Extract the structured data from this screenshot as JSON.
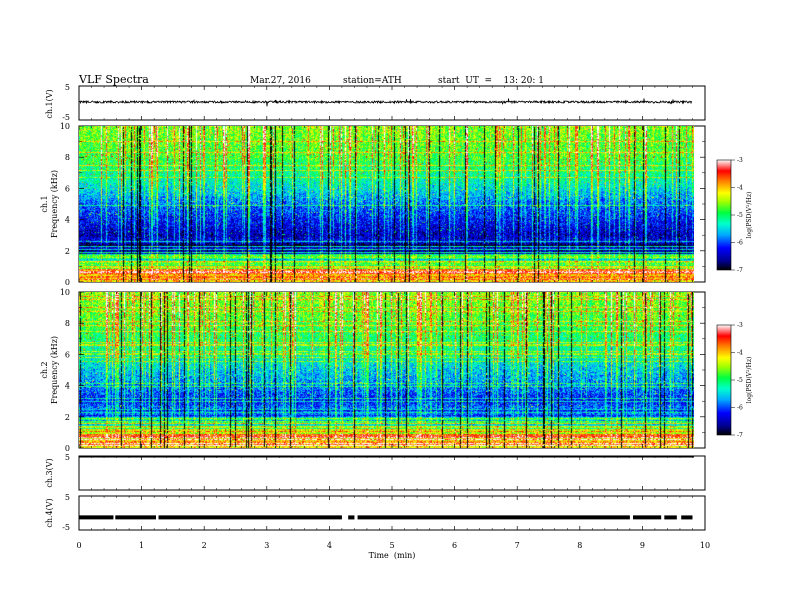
{
  "header": {
    "title": "VLF  Spectra",
    "date": "Mar.27, 2016",
    "station": "station=ATH",
    "start": "start  UT  =    13: 20: 1"
  },
  "chart_data": [
    {
      "type": "line",
      "panel": "ch1-waveform",
      "ylabel": "ch.1(V)",
      "ylim": [
        -5,
        5
      ],
      "yticks": [
        "5",
        "-5"
      ],
      "xlim": [
        0,
        10
      ],
      "data_extent_min": [
        0,
        9.8
      ],
      "approx_level_v": 0.3,
      "approx_noise_amplitude_v": 0.6
    },
    {
      "type": "heatmap",
      "panel": "ch1-spectrogram",
      "ylabel": "ch.1\nFrequency  (kHz)",
      "ylim": [
        0,
        10
      ],
      "yticks": [
        "0",
        "2",
        "4",
        "6",
        "8",
        "10"
      ],
      "xlim": [
        0,
        10
      ],
      "data_extent_min": [
        0,
        9.8
      ],
      "colorbar": {
        "label": "log(PSD(V²/Hz)",
        "range": [
          -7,
          -3
        ],
        "ticks": [
          "-3",
          "-4",
          "-5",
          "-6",
          "-7"
        ]
      },
      "approx_log_psd_by_freq_khz": {
        "0.5": -3.8,
        "1": -4.5,
        "2": -6.2,
        "3": -6.6,
        "4": -6.3,
        "5": -6.0,
        "6": -5.6,
        "7": -5.3,
        "8": -5.0,
        "9": -4.9,
        "10": -4.8
      }
    },
    {
      "type": "heatmap",
      "panel": "ch2-spectrogram",
      "ylabel": "ch.2\nFrequency  (kHz)",
      "ylim": [
        0,
        10
      ],
      "yticks": [
        "0",
        "2",
        "4",
        "6",
        "8",
        "10"
      ],
      "xlim": [
        0,
        10
      ],
      "data_extent_min": [
        0,
        9.8
      ],
      "colorbar": {
        "label": "log(PSD(V²/Hz)",
        "range": [
          -7,
          -3
        ],
        "ticks": [
          "-3",
          "-4",
          "-5",
          "-6",
          "-7"
        ]
      },
      "approx_log_psd_by_freq_khz": {
        "0.5": -3.6,
        "1": -4.2,
        "2": -5.6,
        "3": -6.3,
        "4": -5.9,
        "5": -5.7,
        "6": -5.4,
        "7": -5.2,
        "8": -5.0,
        "9": -4.9,
        "10": -4.8
      }
    },
    {
      "type": "line",
      "panel": "ch3-waveform",
      "ylabel": "ch.3(V)",
      "ylim": [
        -5,
        5
      ],
      "yticks": [
        "5"
      ],
      "xlim": [
        0,
        10
      ],
      "approx_level_v": 5
    },
    {
      "type": "line",
      "panel": "ch4-waveform",
      "ylabel": "ch.4(V)",
      "ylim": [
        -5,
        5
      ],
      "yticks": [
        "5",
        "-5"
      ],
      "xlim": [
        0,
        10
      ],
      "xlabel": "Time  (min)",
      "xticks": [
        "0",
        "1",
        "2",
        "3",
        "4",
        "5",
        "6",
        "7",
        "8",
        "9",
        "10"
      ],
      "approx_level_v": -1.3
    }
  ]
}
